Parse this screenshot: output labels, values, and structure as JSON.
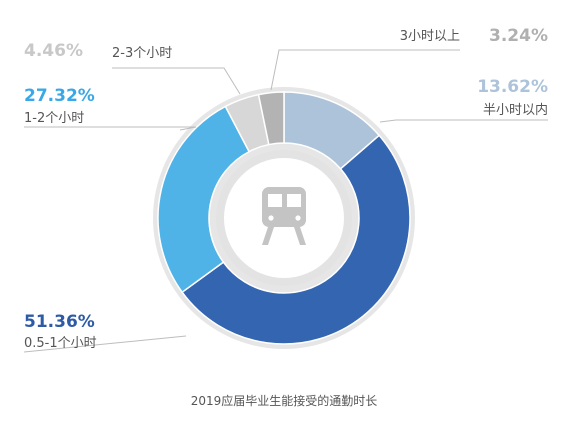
{
  "chart_data": {
    "type": "pie",
    "subtype": "donut",
    "title": "2019应届毕业生能接受的通勤时长",
    "center_icon": "train-icon",
    "slices": [
      {
        "label": "半小时以内",
        "value": 13.62,
        "value_label": "13.62%",
        "color": "#adc3d9",
        "text_color": "#adc3d9"
      },
      {
        "label": "0.5-1个小时",
        "value": 51.36,
        "value_label": "51.36%",
        "color": "#3465b0",
        "text_color": "#2d5ba6"
      },
      {
        "label": "1-2个小时",
        "value": 27.32,
        "value_label": "27.32%",
        "color": "#4fb3e8",
        "text_color": "#3aa8e6"
      },
      {
        "label": "2-3个小时",
        "value": 4.46,
        "value_label": "4.46%",
        "color": "#d7d7d7",
        "text_color": "#c8c8c8"
      },
      {
        "label": "3小时以上",
        "value": 3.24,
        "value_label": "3.24%",
        "color": "#b3b3b3",
        "text_color": "#b0b0b0"
      }
    ]
  },
  "colors": {
    "outer_ring": "#e6e6e6",
    "inner_ring": "#e3e3e3",
    "icon": "#c4c4c4",
    "leader": "#bdbdbd"
  }
}
